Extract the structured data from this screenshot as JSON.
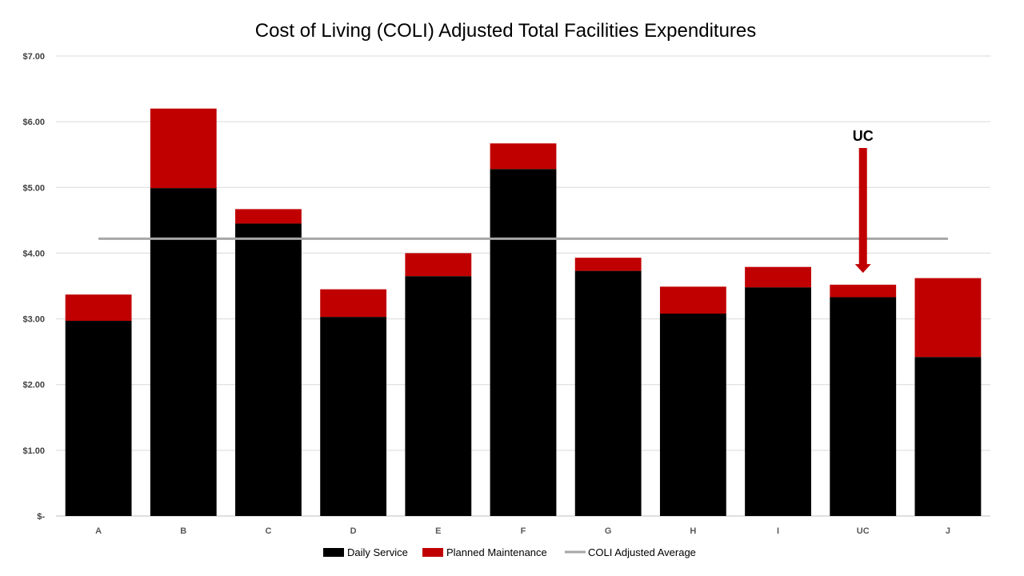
{
  "chart_data": {
    "type": "bar",
    "stacked": true,
    "title": "Cost of Living (COLI) Adjusted Total Facilities Expenditures",
    "xlabel": "",
    "ylabel": "",
    "categories": [
      "A",
      "B",
      "C",
      "D",
      "E",
      "F",
      "G",
      "H",
      "I",
      "UC",
      "J"
    ],
    "series": [
      {
        "name": "Daily Service",
        "color": "#000000",
        "values": [
          2.97,
          4.99,
          4.45,
          3.03,
          3.65,
          5.28,
          3.73,
          3.08,
          3.48,
          3.33,
          2.42
        ]
      },
      {
        "name": "Planned Maintenance",
        "color": "#C00000",
        "values": [
          0.4,
          1.21,
          0.22,
          0.42,
          0.35,
          0.39,
          0.2,
          0.41,
          0.31,
          0.19,
          1.2
        ]
      }
    ],
    "average": {
      "name": "COLI Adjusted Average",
      "value": 4.22,
      "color": "#A6A6A6"
    },
    "ylim": [
      0,
      7
    ],
    "yticks": [
      {
        "value": 0,
        "label": "$-"
      },
      {
        "value": 1,
        "label": "$1.00"
      },
      {
        "value": 2,
        "label": "$2.00"
      },
      {
        "value": 3,
        "label": "$3.00"
      },
      {
        "value": 4,
        "label": "$4.00"
      },
      {
        "value": 5,
        "label": "$5.00"
      },
      {
        "value": 6,
        "label": "$6.00"
      },
      {
        "value": 7,
        "label": "$7.00"
      }
    ],
    "grid": true,
    "legend_position": "bottom",
    "annotation": {
      "text": "UC",
      "target": "UC",
      "arrow_from": 5.6,
      "arrow_to": 3.7,
      "color": "#C00000"
    }
  }
}
